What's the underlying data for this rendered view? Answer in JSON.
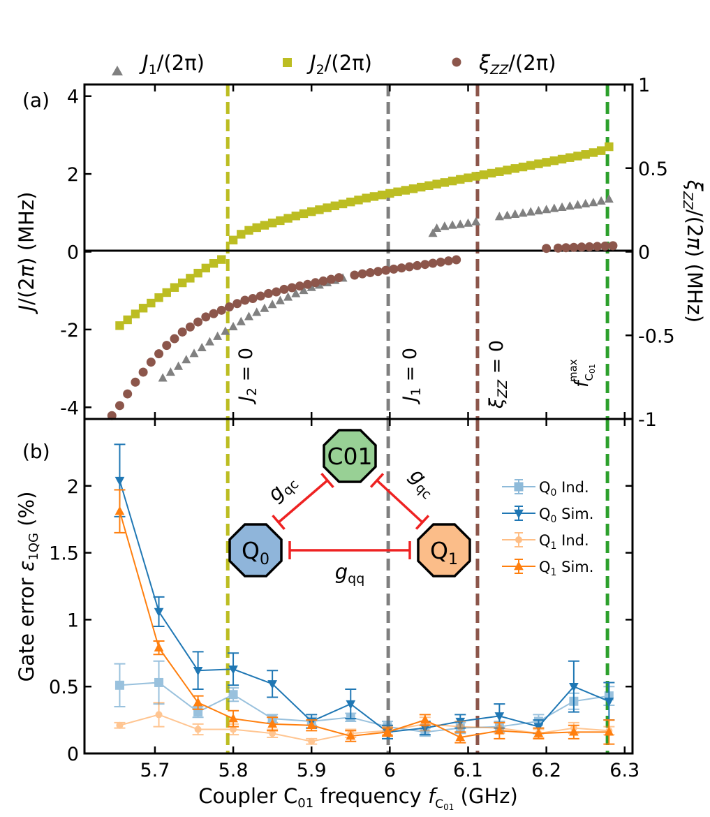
{
  "chart_data": [
    {
      "panel": "(a)",
      "type": "scatter",
      "ylabel": "J/(2π) (MHz)",
      "ylabel_right": "ξZZ/(2π) (MHz)",
      "xlim": [
        5.61,
        6.31
      ],
      "ylim": [
        -4.3,
        4.3
      ],
      "ylim_right": [
        -1.0,
        1.0
      ],
      "yticks": [
        "-4",
        "-2",
        "0",
        "2",
        "4"
      ],
      "yticks_right": [
        "-1",
        "-0.5",
        "0",
        "0.5",
        "1"
      ],
      "legend_position": "top",
      "series": [
        {
          "name": "J1/(2π)",
          "marker": "triangle",
          "color": "#808080",
          "axis": "left",
          "x": [
            5.71,
            5.72,
            5.73,
            5.74,
            5.75,
            5.76,
            5.77,
            5.78,
            5.79,
            5.8,
            5.81,
            5.82,
            5.83,
            5.84,
            5.85,
            5.86,
            5.87,
            5.88,
            5.89,
            5.9,
            5.91,
            5.92,
            5.93,
            5.94,
            6.055,
            6.06,
            6.07,
            6.08,
            6.09,
            6.1,
            6.11,
            6.14,
            6.15,
            6.16,
            6.17,
            6.18,
            6.19,
            6.2,
            6.21,
            6.22,
            6.23,
            6.24,
            6.25,
            6.26,
            6.27,
            6.28
          ],
          "y": [
            -3.25,
            -3.1,
            -2.95,
            -2.78,
            -2.62,
            -2.47,
            -2.32,
            -2.18,
            -2.05,
            -1.93,
            -1.8,
            -1.67,
            -1.56,
            -1.46,
            -1.36,
            -1.26,
            -1.17,
            -1.08,
            -1.0,
            -0.92,
            -0.86,
            -0.8,
            -0.74,
            -0.68,
            0.47,
            0.6,
            0.65,
            0.68,
            0.7,
            0.73,
            0.77,
            0.9,
            0.93,
            0.96,
            0.99,
            1.02,
            1.05,
            1.08,
            1.11,
            1.14,
            1.17,
            1.2,
            1.23,
            1.26,
            1.3,
            1.35
          ]
        },
        {
          "name": "J2/(2π)",
          "marker": "square",
          "color": "#bcbd22",
          "axis": "left",
          "x": [
            5.655,
            5.665,
            5.675,
            5.685,
            5.695,
            5.705,
            5.715,
            5.725,
            5.735,
            5.745,
            5.755,
            5.765,
            5.775,
            5.785,
            5.8,
            5.81,
            5.82,
            5.83,
            5.84,
            5.85,
            5.86,
            5.87,
            5.88,
            5.89,
            5.9,
            5.91,
            5.92,
            5.93,
            5.94,
            5.95,
            5.96,
            5.97,
            5.98,
            5.99,
            6.0,
            6.01,
            6.02,
            6.03,
            6.04,
            6.05,
            6.06,
            6.07,
            6.08,
            6.09,
            6.1,
            6.11,
            6.12,
            6.13,
            6.14,
            6.15,
            6.16,
            6.17,
            6.18,
            6.19,
            6.2,
            6.21,
            6.22,
            6.23,
            6.24,
            6.25,
            6.26,
            6.27,
            6.28
          ],
          "y": [
            -1.9,
            -1.75,
            -1.6,
            -1.45,
            -1.32,
            -1.18,
            -1.05,
            -0.92,
            -0.8,
            -0.68,
            -0.55,
            -0.42,
            -0.3,
            -0.2,
            0.3,
            0.45,
            0.55,
            0.62,
            0.68,
            0.74,
            0.8,
            0.86,
            0.92,
            0.98,
            1.03,
            1.08,
            1.13,
            1.18,
            1.23,
            1.28,
            1.33,
            1.38,
            1.42,
            1.46,
            1.5,
            1.54,
            1.58,
            1.62,
            1.66,
            1.7,
            1.74,
            1.78,
            1.82,
            1.86,
            1.9,
            1.94,
            1.98,
            2.02,
            2.06,
            2.1,
            2.14,
            2.18,
            2.22,
            2.26,
            2.3,
            2.34,
            2.38,
            2.42,
            2.46,
            2.5,
            2.55,
            2.6,
            2.7
          ]
        },
        {
          "name": "ξZZ/(2π)",
          "marker": "circle",
          "color": "#8c564b",
          "axis": "right",
          "x": [
            5.645,
            5.655,
            5.665,
            5.675,
            5.685,
            5.695,
            5.705,
            5.715,
            5.725,
            5.735,
            5.745,
            5.755,
            5.765,
            5.775,
            5.785,
            5.795,
            5.805,
            5.815,
            5.825,
            5.835,
            5.845,
            5.855,
            5.865,
            5.875,
            5.885,
            5.895,
            5.905,
            5.915,
            5.925,
            5.935,
            5.955,
            5.965,
            5.975,
            5.985,
            5.995,
            6.005,
            6.015,
            6.025,
            6.035,
            6.045,
            6.055,
            6.065,
            6.075,
            6.085,
            6.2,
            6.215,
            6.225,
            6.235,
            6.245,
            6.255,
            6.265,
            6.275,
            6.285
          ],
          "y": [
            -0.98,
            -0.92,
            -0.85,
            -0.78,
            -0.72,
            -0.66,
            -0.61,
            -0.56,
            -0.52,
            -0.48,
            -0.45,
            -0.42,
            -0.39,
            -0.37,
            -0.35,
            -0.33,
            -0.31,
            -0.29,
            -0.28,
            -0.265,
            -0.25,
            -0.24,
            -0.225,
            -0.215,
            -0.205,
            -0.195,
            -0.185,
            -0.175,
            -0.165,
            -0.155,
            -0.14,
            -0.132,
            -0.125,
            -0.118,
            -0.111,
            -0.104,
            -0.097,
            -0.09,
            -0.083,
            -0.076,
            -0.069,
            -0.062,
            -0.055,
            -0.048,
            0.02,
            0.022,
            0.024,
            0.026,
            0.028,
            0.03,
            0.032,
            0.034,
            0.036
          ]
        }
      ],
      "vlines": [
        {
          "x": 5.793,
          "color": "#bcbd22",
          "label": "J2 = 0"
        },
        {
          "x": 5.998,
          "color": "#7f7f7f",
          "label": "J1 = 0"
        },
        {
          "x": 6.112,
          "color": "#8c564b",
          "label": "ξZZ = 0"
        },
        {
          "x": 6.278,
          "color": "#2ca02c",
          "label": "fC01 max"
        }
      ]
    },
    {
      "panel": "(b)",
      "type": "line",
      "xlabel": "Coupler C01 frequency fC01 (GHz)",
      "ylabel": "Gate error ε1QG (%)",
      "xlim": [
        5.61,
        6.31
      ],
      "ylim": [
        0,
        2.5
      ],
      "xticks": [
        "5.7",
        "5.8",
        "5.9",
        "6",
        "6.1",
        "6.2",
        "6.3"
      ],
      "yticks": [
        "0",
        "0.5",
        "1",
        "1.5",
        "2"
      ],
      "legend_position": "right",
      "x": [
        5.655,
        5.705,
        5.755,
        5.8,
        5.85,
        5.9,
        5.95,
        5.997,
        6.045,
        6.09,
        6.14,
        6.19,
        6.235,
        6.28
      ],
      "series": [
        {
          "name": "Q0 Ind.",
          "color": "#1f77b4",
          "marker": "square",
          "faded": true,
          "values": [
            0.51,
            0.53,
            0.31,
            0.44,
            0.26,
            0.24,
            0.27,
            0.2,
            0.16,
            0.19,
            0.2,
            0.24,
            0.39,
            0.43
          ],
          "errors": [
            0.16,
            0.16,
            0.04,
            0.05,
            0.03,
            0.03,
            0.03,
            0.04,
            0.03,
            0.04,
            0.04,
            0.05,
            0.06,
            0.07
          ]
        },
        {
          "name": "Q0 Sim.",
          "color": "#1f77b4",
          "marker": "triangle-down",
          "faded": false,
          "values": [
            2.04,
            1.06,
            0.62,
            0.63,
            0.52,
            0.24,
            0.37,
            0.16,
            0.19,
            0.24,
            0.28,
            0.2,
            0.5,
            0.39
          ],
          "errors": [
            0.27,
            0.11,
            0.14,
            0.12,
            0.1,
            0.05,
            0.11,
            0.05,
            0.05,
            0.05,
            0.09,
            0.05,
            0.19,
            0.14
          ]
        },
        {
          "name": "Q1 Ind.",
          "color": "#ff7f0e",
          "marker": "circle",
          "faded": true,
          "values": [
            0.21,
            0.29,
            0.18,
            0.18,
            0.15,
            0.09,
            0.15,
            0.17,
            0.22,
            0.2,
            0.19,
            0.15,
            0.19,
            0.17
          ],
          "errors": [
            0.02,
            0.09,
            0.04,
            0.04,
            0.03,
            0.02,
            0.03,
            0.03,
            0.05,
            0.04,
            0.04,
            0.03,
            0.04,
            0.03
          ]
        },
        {
          "name": "Q1 Sim.",
          "color": "#ff7f0e",
          "marker": "triangle-up",
          "faded": false,
          "values": [
            1.81,
            0.79,
            0.38,
            0.26,
            0.22,
            0.21,
            0.13,
            0.16,
            0.25,
            0.12,
            0.17,
            0.15,
            0.16,
            0.16
          ],
          "errors": [
            0.16,
            0.05,
            0.05,
            0.06,
            0.05,
            0.04,
            0.04,
            0.03,
            0.04,
            0.04,
            0.06,
            0.04,
            0.05,
            0.09
          ]
        }
      ],
      "vlines": [
        {
          "x": 5.793,
          "color": "#bcbd22"
        },
        {
          "x": 5.998,
          "color": "#7f7f7f"
        },
        {
          "x": 6.112,
          "color": "#8c564b"
        },
        {
          "x": 6.278,
          "color": "#2ca02c"
        }
      ],
      "inset": {
        "nodes": [
          {
            "name": "C01",
            "color": "#98d095"
          },
          {
            "name": "Q0",
            "color": "#8fb5da"
          },
          {
            "name": "Q1",
            "color": "#fbbd89"
          }
        ],
        "links": [
          {
            "from": "Q0",
            "to": "C01",
            "label": "gqc"
          },
          {
            "from": "C01",
            "to": "Q1",
            "label": "gqc"
          },
          {
            "from": "Q0",
            "to": "Q1",
            "label": "gqq"
          }
        ],
        "link_color": "#ee2222"
      }
    }
  ]
}
